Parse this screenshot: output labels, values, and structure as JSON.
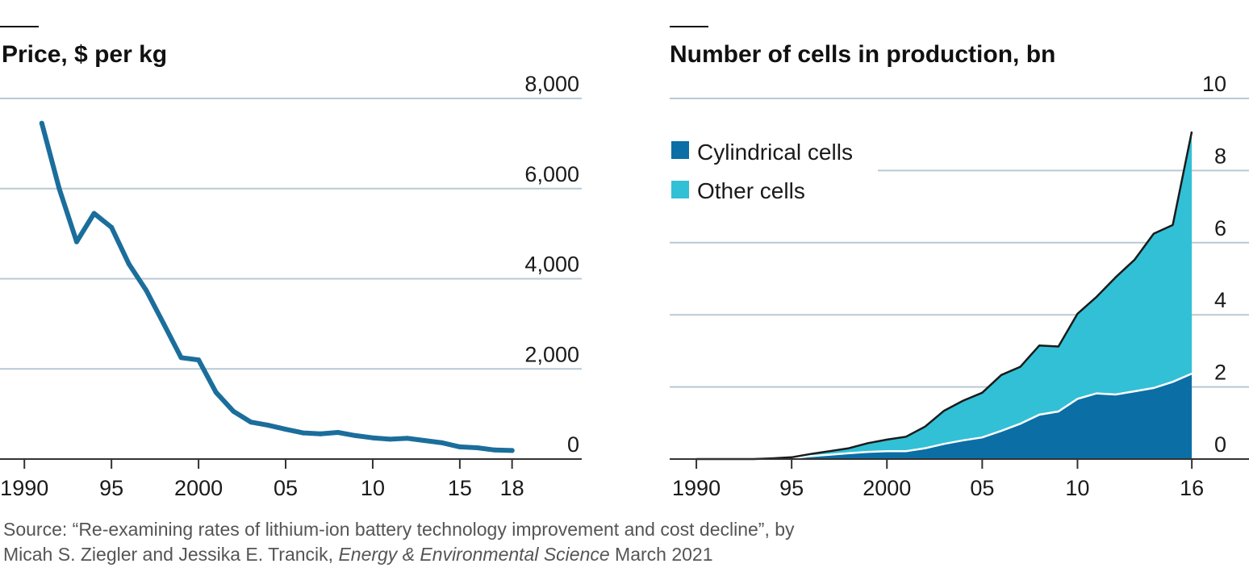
{
  "colors": {
    "price_line": "#1b6e9c",
    "cylindrical": "#0b6ea5",
    "other": "#32c0d6",
    "gridline": "#b9c9d3",
    "axis": "#333333",
    "rule": "#111111"
  },
  "chart_data": [
    {
      "type": "line",
      "title": "Price, $ per kg",
      "xlabel": "",
      "ylabel": "",
      "xlim": [
        1988.6,
        2022
      ],
      "ylim": [
        0,
        8000
      ],
      "x_ticks": [
        1990,
        1995,
        2000,
        2005,
        2010,
        2015,
        2018
      ],
      "x_tick_labels": [
        "1990",
        "95",
        "2000",
        "05",
        "10",
        "15",
        "18"
      ],
      "y_ticks": [
        0,
        2000,
        4000,
        6000,
        8000
      ],
      "y_tick_labels": [
        "0",
        "2,000",
        "4,000",
        "6,000",
        "8,000"
      ],
      "grid": true,
      "series": [
        {
          "name": "Price",
          "x": [
            1991,
            1992,
            1993,
            1994,
            1995,
            1996,
            1997,
            1998,
            1999,
            2000,
            2001,
            2002,
            2003,
            2004,
            2005,
            2006,
            2007,
            2008,
            2009,
            2010,
            2011,
            2012,
            2013,
            2014,
            2015,
            2016,
            2017,
            2018
          ],
          "values": [
            7450,
            6000,
            4820,
            5450,
            5140,
            4330,
            3740,
            3000,
            2250,
            2200,
            1480,
            1060,
            820,
            750,
            660,
            580,
            560,
            590,
            520,
            470,
            440,
            460,
            410,
            360,
            270,
            250,
            200,
            190
          ]
        }
      ]
    },
    {
      "type": "area",
      "stacked": true,
      "title": "Number of cells in production, bn",
      "xlabel": "",
      "ylabel": "",
      "xlim": [
        1988.6,
        2019
      ],
      "ylim": [
        0,
        10
      ],
      "x_ticks": [
        1990,
        1995,
        2000,
        2005,
        2010,
        2016
      ],
      "x_tick_labels": [
        "1990",
        "95",
        "2000",
        "05",
        "10",
        "16"
      ],
      "y_ticks": [
        0,
        2,
        4,
        6,
        8,
        10
      ],
      "y_tick_labels": [
        "0",
        "2",
        "4",
        "6",
        "8",
        "10"
      ],
      "grid": true,
      "legend_position": "top-left",
      "x": [
        1990,
        1991,
        1992,
        1993,
        1994,
        1995,
        1996,
        1997,
        1998,
        1999,
        2000,
        2001,
        2002,
        2003,
        2004,
        2005,
        2006,
        2007,
        2008,
        2009,
        2010,
        2011,
        2012,
        2013,
        2014,
        2015,
        2016
      ],
      "series": [
        {
          "name": "Cylindrical cells",
          "values": [
            0,
            0,
            0,
            0,
            0.01,
            0.03,
            0.08,
            0.12,
            0.16,
            0.2,
            0.22,
            0.22,
            0.3,
            0.42,
            0.52,
            0.6,
            0.78,
            0.98,
            1.23,
            1.32,
            1.67,
            1.82,
            1.79,
            1.88,
            1.97,
            2.14,
            2.37
          ]
        },
        {
          "name": "Other cells",
          "values": [
            0,
            0,
            0,
            0,
            0.01,
            0.02,
            0.06,
            0.1,
            0.14,
            0.24,
            0.32,
            0.4,
            0.6,
            0.92,
            1.1,
            1.24,
            1.55,
            1.58,
            1.92,
            1.8,
            2.36,
            2.68,
            3.25,
            3.65,
            4.28,
            4.35,
            6.71
          ]
        }
      ]
    }
  ],
  "source": {
    "line1": "Source: “Re-examining rates of lithium-ion battery technology improvement and cost decline”, by",
    "line2_pre": "Micah S. Ziegler and Jessika E. Trancik, ",
    "line2_journal": "Energy & Environmental Science",
    "line2_post": " March 2021"
  }
}
